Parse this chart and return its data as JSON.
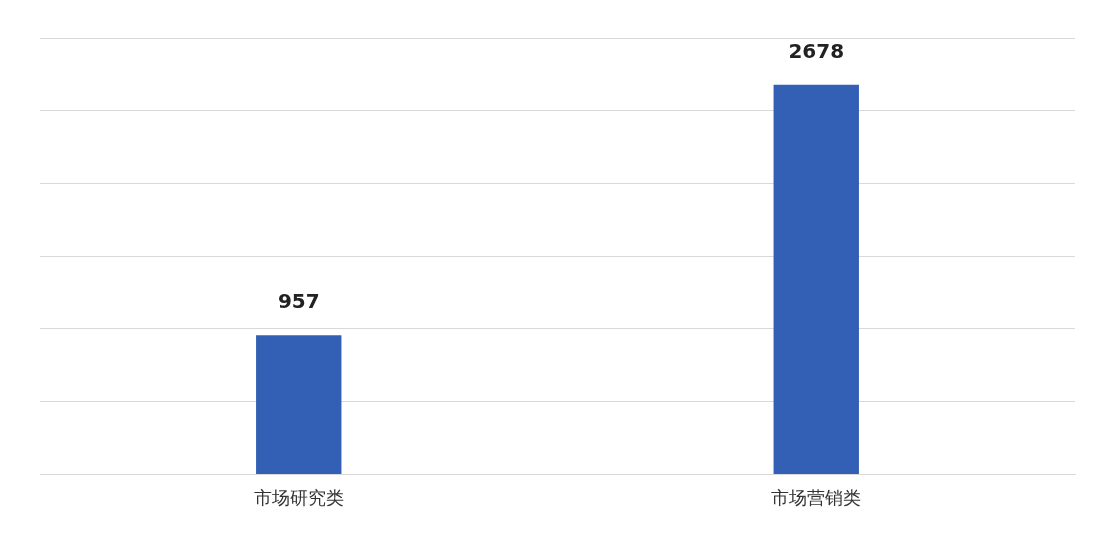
{
  "chart_data": {
    "type": "bar",
    "categories": [
      "市场研究类",
      "市场营销类"
    ],
    "values": [
      957,
      2678
    ],
    "color": "#3360b4",
    "data_labels": true,
    "ylim": [
      0,
      3000
    ],
    "yticks": [
      {
        "value": 0,
        "label": null
      },
      {
        "value": 500,
        "label": null
      },
      {
        "value": 1000,
        "label": null
      },
      {
        "value": 1500,
        "label": null
      },
      {
        "value": 2000,
        "label": null
      },
      {
        "value": 2500,
        "label": null
      },
      {
        "value": 3000,
        "label": null
      }
    ],
    "grid": "y",
    "tick_labels": "x"
  }
}
